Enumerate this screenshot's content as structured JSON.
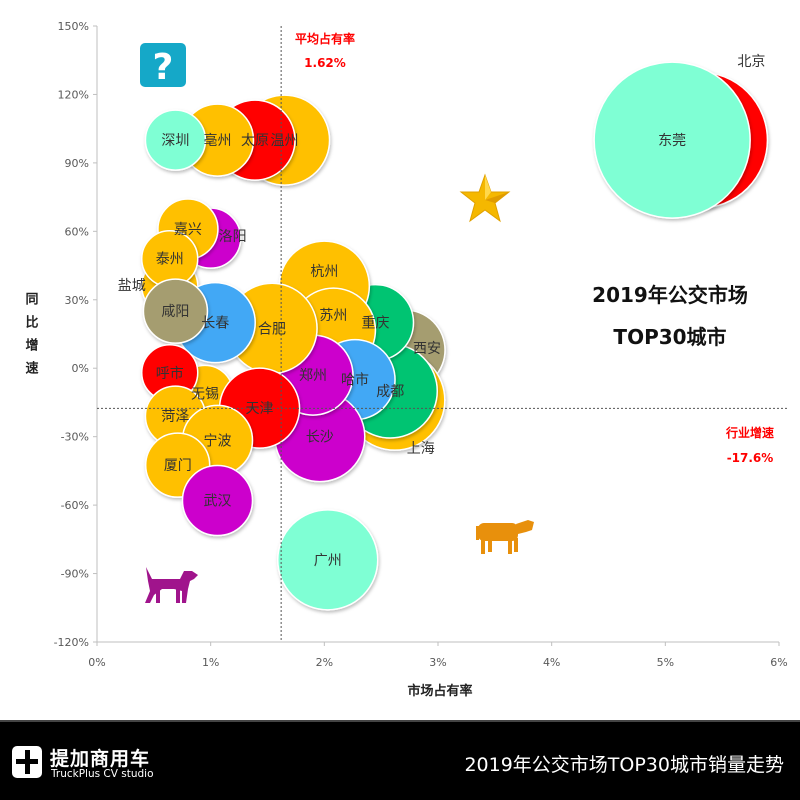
{
  "chart_data": {
    "type": "scatter",
    "subtype": "bubble",
    "title": "2019年公交市场 TOP30城市",
    "title_lines": [
      "2019年公交市场",
      "TOP30城市"
    ],
    "xlabel": "市场占有率",
    "ylabel": "同比增速",
    "xlim": [
      0,
      6
    ],
    "ylim": [
      -120,
      150
    ],
    "x_ticks": [
      0,
      1,
      2,
      3,
      4,
      5,
      6
    ],
    "x_tick_labels": [
      "0%",
      "1%",
      "2%",
      "3%",
      "4%",
      "5%",
      "6%"
    ],
    "y_ticks": [
      150,
      120,
      90,
      60,
      30,
      0,
      -30,
      -60,
      -90,
      -120
    ],
    "y_tick_labels": [
      "150%",
      "120%",
      "90%",
      "60%",
      "30%",
      "0%",
      "-30%",
      "-60%",
      "-90%",
      "-120%"
    ],
    "grid": false,
    "reference_lines": {
      "x": {
        "value": 1.62,
        "label": "平均占有率",
        "value_label": "1.62%"
      },
      "y": {
        "value": -17.6,
        "label": "行业增速",
        "value_label": "-17.6%"
      }
    },
    "colors": {
      "yellow": "#ffc000",
      "red": "#ff0000",
      "aqua": "#7fffd4",
      "purple": "#cc00cc",
      "blue": "#42a8f5",
      "green": "#00c472",
      "olive": "#a59d6f",
      "annotation": "#ff0000"
    },
    "points": [
      {
        "name": "北京",
        "x": 5.3,
        "y": 100,
        "size": 68,
        "color": "#ff0000",
        "label_pos": "top-right"
      },
      {
        "name": "东莞",
        "x": 5.06,
        "y": 100,
        "size": 78,
        "color": "#7fffd4",
        "label_pos": "center"
      },
      {
        "name": "温州",
        "x": 1.65,
        "y": 100,
        "size": 45,
        "color": "#ffc000",
        "label_pos": "center"
      },
      {
        "name": "太原",
        "x": 1.39,
        "y": 100,
        "size": 40,
        "color": "#ff0000",
        "label_pos": "center"
      },
      {
        "name": "亳州",
        "x": 1.06,
        "y": 100,
        "size": 36,
        "color": "#ffc000",
        "label_pos": "center"
      },
      {
        "name": "深圳",
        "x": 0.69,
        "y": 100,
        "size": 30,
        "color": "#7fffd4",
        "label_pos": "center"
      },
      {
        "name": "洛阳",
        "x": 1.0,
        "y": 57,
        "size": 30,
        "color": "#cc00cc",
        "label_pos": "right"
      },
      {
        "name": "嘉兴",
        "x": 0.8,
        "y": 61,
        "size": 30,
        "color": "#ffc000",
        "label_pos": "center"
      },
      {
        "name": "盐城",
        "x": 0.64,
        "y": 36,
        "size": 28,
        "color": "#ffc000",
        "label_pos": "left"
      },
      {
        "name": "泰州",
        "x": 0.64,
        "y": 48,
        "size": 28,
        "color": "#ffc000",
        "label_pos": "center"
      },
      {
        "name": "西安",
        "x": 2.71,
        "y": 8,
        "size": 40,
        "color": "#a59d6f",
        "label_pos": "right"
      },
      {
        "name": "上海",
        "x": 2.62,
        "y": -14,
        "size": 50,
        "color": "#ffc000",
        "label_pos": "bottom-right"
      },
      {
        "name": "成都",
        "x": 2.58,
        "y": -10,
        "size": 47,
        "color": "#00c472",
        "label_pos": "center"
      },
      {
        "name": "重庆",
        "x": 2.45,
        "y": 20,
        "size": 38,
        "color": "#00c472",
        "label_pos": "center"
      },
      {
        "name": "杭州",
        "x": 2.0,
        "y": 36,
        "size": 45,
        "color": "#ffc000",
        "label_pos": "top"
      },
      {
        "name": "苏州",
        "x": 2.08,
        "y": 16.7,
        "size": 42,
        "color": "#ffc000",
        "label_pos": "top"
      },
      {
        "name": "哈市",
        "x": 2.27,
        "y": -5,
        "size": 40,
        "color": "#42a8f5",
        "label_pos": "center"
      },
      {
        "name": "长沙",
        "x": 1.96,
        "y": -30,
        "size": 45,
        "color": "#cc00cc",
        "label_pos": "center"
      },
      {
        "name": "郑州",
        "x": 1.9,
        "y": -3,
        "size": 40,
        "color": "#cc00cc",
        "label_pos": "center"
      },
      {
        "name": "合肥",
        "x": 1.54,
        "y": 17.5,
        "size": 45,
        "color": "#ffc000",
        "label_pos": "center"
      },
      {
        "name": "长春",
        "x": 1.04,
        "y": 20,
        "size": 40,
        "color": "#42a8f5",
        "label_pos": "center"
      },
      {
        "name": "咸阳",
        "x": 0.69,
        "y": 25,
        "size": 32,
        "color": "#a59d6f",
        "label_pos": "center"
      },
      {
        "name": "无锡",
        "x": 0.95,
        "y": -11,
        "size": 28,
        "color": "#ffc000",
        "label_pos": "center"
      },
      {
        "name": "呼市",
        "x": 0.64,
        "y": -2,
        "size": 28,
        "color": "#ff0000",
        "label_pos": "center"
      },
      {
        "name": "菏泽",
        "x": 0.69,
        "y": -21,
        "size": 30,
        "color": "#ffc000",
        "label_pos": "center"
      },
      {
        "name": "天津",
        "x": 1.43,
        "y": -17.5,
        "size": 40,
        "color": "#ff0000",
        "label_pos": "center"
      },
      {
        "name": "宁波",
        "x": 1.06,
        "y": -31.6,
        "size": 35,
        "color": "#ffc000",
        "label_pos": "center"
      },
      {
        "name": "厦门",
        "x": 0.71,
        "y": -42.5,
        "size": 32,
        "color": "#ffc000",
        "label_pos": "center"
      },
      {
        "name": "武汉",
        "x": 1.06,
        "y": -58,
        "size": 35,
        "color": "#cc00cc",
        "label_pos": "center"
      },
      {
        "name": "广州",
        "x": 2.03,
        "y": -84,
        "size": 50,
        "color": "#7fffd4",
        "label_pos": "center"
      }
    ],
    "decorations": {
      "question": "question-icon",
      "star": "star-icon",
      "cow": "cow-icon",
      "dog": "dog-icon"
    }
  },
  "footer": {
    "brand": "提加商用车",
    "brand_sub": "TruckPlus CV studio",
    "title": "2019年公交市场TOP30城市销量走势"
  }
}
